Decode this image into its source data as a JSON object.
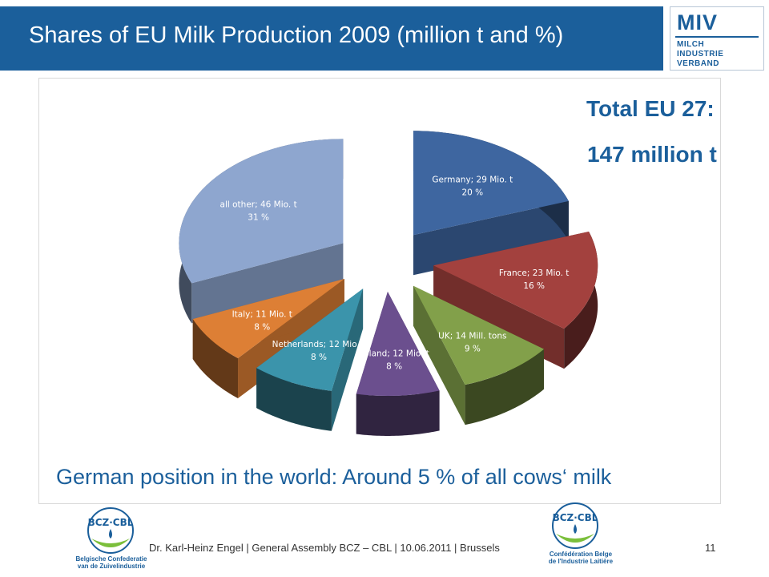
{
  "header": {
    "title": "Shares of EU Milk Production 2009  (million t and %)"
  },
  "logo": {
    "name": "MIV",
    "lines": [
      "MILCH",
      "INDUSTRIE",
      "VERBAND"
    ]
  },
  "total": {
    "line1": "Total EU 27:",
    "line2": "147 million t"
  },
  "world_note": "German position in the world: Around 5 % of all cows‘ milk",
  "footer": {
    "text": "Dr. Karl-Heinz Engel | General Assembly BCZ – CBL | 10.06.2011 | Brussels",
    "page": "11",
    "left_logo_lines": [
      "Belgische Confederatie",
      "van de Zuivelindustrie"
    ],
    "right_logo_lines": [
      "Confédération Belge",
      "de l'Industrie Laitière"
    ]
  },
  "colors": {
    "brand": "#1b5f9b"
  },
  "chart_data": {
    "type": "pie",
    "title": "",
    "exploded": true,
    "three_d": true,
    "slices": [
      {
        "name": "Germany",
        "label_line1": "Germany; 29 Mio. t",
        "label_line2": "20 %",
        "value": 29,
        "percent": 20,
        "color": "#3e66a0"
      },
      {
        "name": "France",
        "label_line1": "France; 23 Mio. t",
        "label_line2": "16 %",
        "value": 23,
        "percent": 16,
        "color": "#a3413e"
      },
      {
        "name": "UK",
        "label_line1": "UK; 14 Mill. tons",
        "label_line2": "9 %",
        "value": 14,
        "percent": 9,
        "color": "#82a04a"
      },
      {
        "name": "Poland",
        "label_line1": "Poland; 12 Mio. t",
        "label_line2": "8 %",
        "value": 12,
        "percent": 8,
        "color": "#6b4f8e"
      },
      {
        "name": "Netherlands",
        "label_line1": "Netherlands; 12 Mio. t",
        "label_line2": "8 %",
        "value": 12,
        "percent": 8,
        "color": "#3b94ab"
      },
      {
        "name": "Italy",
        "label_line1": "Italy; 11 Mio. t",
        "label_line2": "8 %",
        "value": 11,
        "percent": 8,
        "color": "#dd7f35"
      },
      {
        "name": "all other",
        "label_line1": "all other; 46 Mio. t",
        "label_line2": "31 %",
        "value": 46,
        "percent": 31,
        "color": "#8ea6cf"
      }
    ]
  }
}
